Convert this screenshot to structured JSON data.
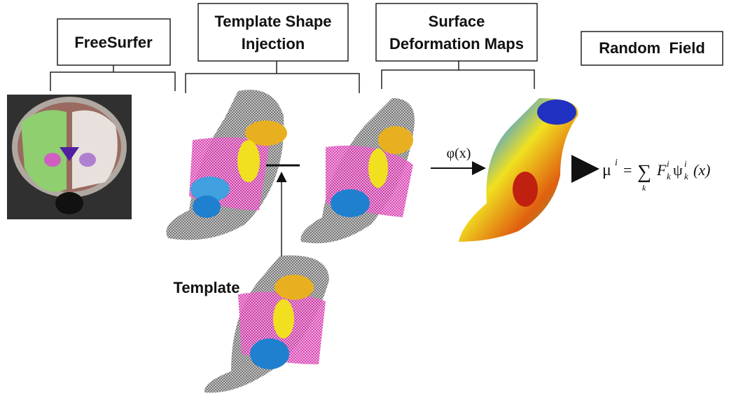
{
  "stages": [
    {
      "lines": [
        "FreeSurfer"
      ]
    },
    {
      "lines": [
        "Template Shape",
        "Injection"
      ]
    },
    {
      "lines": [
        "Surface",
        "Deformation Maps"
      ]
    },
    {
      "lines": [
        "Random  Field"
      ]
    }
  ],
  "template_label": "Template",
  "map_arrow_label": "φ(x)",
  "formula": {
    "lhs": "μ",
    "lhs_sup": "i",
    "equals": "=",
    "sum": "∑",
    "sum_index": "k",
    "term": "F",
    "term_sup": "i",
    "term_sub": "k",
    "basis": "ψ",
    "basis_sup": "i",
    "basis_sub": "k",
    "arg": "(x)"
  }
}
